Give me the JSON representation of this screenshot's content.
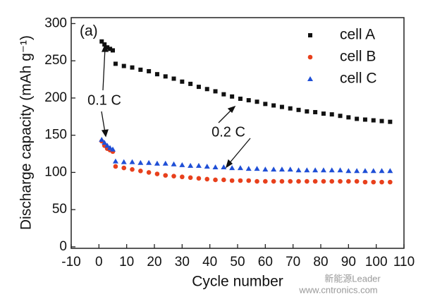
{
  "chart_data": {
    "type": "scatter",
    "panel_label": "(a)",
    "xlabel": "Cycle number",
    "ylabel": "Discharge capacity (mAh g⁻¹)",
    "annotations": [
      "0.1 C",
      "0.2 C"
    ],
    "watermarks": [
      "新能源Leader",
      "www.cntronics.com"
    ],
    "x": [
      1,
      2,
      3,
      4,
      5,
      6,
      9,
      12,
      15,
      18,
      21,
      24,
      27,
      30,
      33,
      36,
      39,
      42,
      45,
      48,
      51,
      54,
      57,
      60,
      63,
      66,
      69,
      72,
      75,
      78,
      81,
      84,
      87,
      90,
      93,
      96,
      99,
      102,
      105
    ],
    "series": [
      {
        "name": "cell A",
        "color": "#111111",
        "marker": "square",
        "values": [
          276,
          272,
          268,
          266,
          264,
          246,
          243,
          241,
          238,
          236,
          232,
          229,
          226,
          222,
          219,
          215,
          212,
          209,
          205,
          202,
          199,
          197,
          195,
          192,
          190,
          188,
          186,
          184,
          182,
          181,
          179,
          178,
          176,
          174,
          172,
          171,
          170,
          169,
          168
        ]
      },
      {
        "name": "cell B",
        "color": "#e8401c",
        "marker": "circle",
        "values": [
          142,
          136,
          132,
          130,
          128,
          108,
          106,
          104,
          102,
          100,
          98,
          96,
          95,
          94,
          93,
          92,
          91,
          90,
          90,
          89,
          89,
          89,
          88,
          88,
          88,
          88,
          88,
          88,
          88,
          88,
          88,
          88,
          88,
          88,
          88,
          87,
          87,
          87,
          87
        ]
      },
      {
        "name": "cell C",
        "color": "#1f4fd6",
        "marker": "triangle",
        "values": [
          144,
          140,
          136,
          133,
          131,
          115,
          114,
          114,
          113,
          113,
          112,
          112,
          111,
          110,
          109,
          109,
          108,
          107,
          107,
          106,
          106,
          105,
          105,
          104,
          104,
          104,
          104,
          103,
          103,
          103,
          103,
          103,
          103,
          102,
          102,
          102,
          102,
          102,
          102
        ]
      }
    ],
    "xlim": [
      -10,
      110
    ],
    "xticks": [
      -10,
      0,
      10,
      20,
      30,
      40,
      50,
      60,
      70,
      80,
      90,
      100,
      110
    ],
    "ylim": [
      -2,
      308
    ],
    "yticks": [
      0,
      50,
      100,
      150,
      200,
      250,
      300
    ],
    "legend": "upper right"
  }
}
